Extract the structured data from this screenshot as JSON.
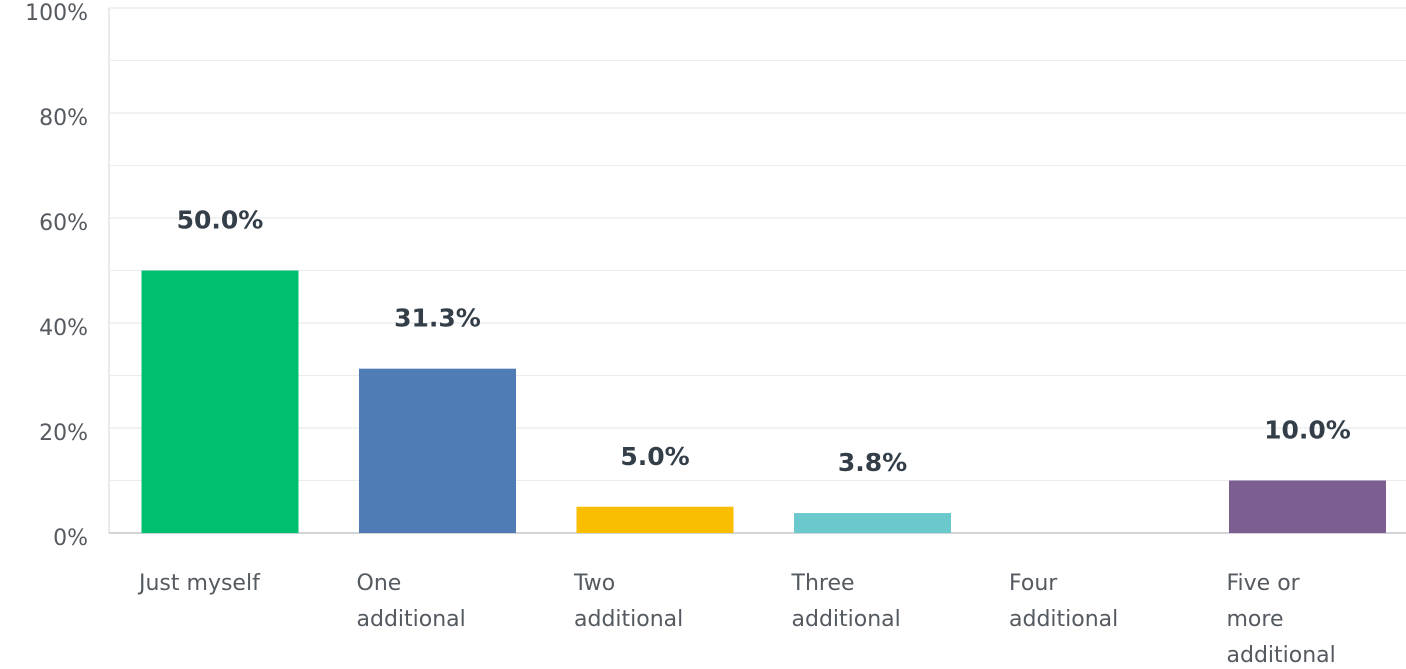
{
  "chart_data": {
    "type": "bar",
    "categories": [
      [
        "Just myself"
      ],
      [
        "One",
        "additional"
      ],
      [
        "Two",
        "additional"
      ],
      [
        "Three",
        "additional"
      ],
      [
        "Four",
        "additional"
      ],
      [
        "Five or",
        "more",
        "additional"
      ]
    ],
    "values": [
      50.0,
      31.3,
      5.0,
      3.8,
      0,
      10.0
    ],
    "data_labels": [
      "50.0%",
      "31.3%",
      "5.0%",
      "3.8%",
      "",
      "10.0%"
    ],
    "colors": [
      "#00bf6f",
      "#507cb6",
      "#f9be00",
      "#6bc8cd",
      "#ff8b4f",
      "#7d5e90"
    ],
    "ylim": [
      0,
      100
    ],
    "y_ticks": [
      "0%",
      "20%",
      "40%",
      "60%",
      "80%",
      "100%"
    ],
    "y_tick_values": [
      0,
      20,
      40,
      60,
      80,
      100
    ],
    "minor_gridlines": [
      10,
      30,
      50,
      70,
      90
    ],
    "grid": true,
    "title": "",
    "xlabel": "",
    "ylabel": ""
  }
}
